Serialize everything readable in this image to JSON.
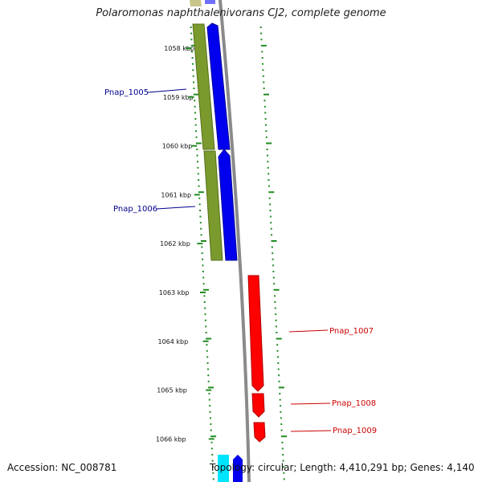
{
  "title": "Polaromonas naphthalenivorans CJ2, complete genome",
  "accession_label": "Accession: NC_008781",
  "topology_label": "Topology: circular; Length: 4,410,291 bp; Genes: 4,140",
  "colors": {
    "forward_cds": "#0000ff",
    "reverse_cds": "#ff0000",
    "gene_track": "#6b8e23",
    "backbone": "#888888",
    "gc_skew": "#228b22",
    "label_forward": "#00008b",
    "label_reverse": "#cc0000",
    "rna": "#00ffff"
  },
  "ticks": [
    {
      "label": "1058 kbp"
    },
    {
      "label": "1059 kbp"
    },
    {
      "label": "1060 kbp"
    },
    {
      "label": "1061 kbp"
    },
    {
      "label": "1062 kbp"
    },
    {
      "label": "1063 kbp"
    },
    {
      "label": "1064 kbp"
    },
    {
      "label": "1065 kbp"
    },
    {
      "label": "1066 kbp"
    }
  ],
  "genes": [
    {
      "name": "Pnap_1005",
      "strand": "forward"
    },
    {
      "name": "Pnap_1006",
      "strand": "forward"
    },
    {
      "name": "Pnap_1007",
      "strand": "reverse"
    },
    {
      "name": "Pnap_1008",
      "strand": "reverse"
    },
    {
      "name": "Pnap_1009",
      "strand": "reverse"
    }
  ]
}
